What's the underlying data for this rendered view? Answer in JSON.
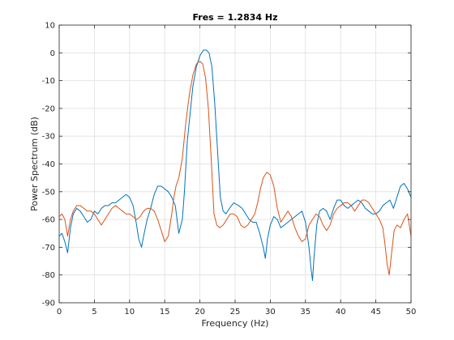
{
  "chart_data": {
    "type": "line",
    "title": "Fres = 1.2834 Hz",
    "xlabel": "Frequency (Hz)",
    "ylabel": "Power Spectrum (dB)",
    "xlim": [
      0,
      50
    ],
    "ylim": [
      -90,
      10
    ],
    "xticks": [
      0,
      5,
      10,
      15,
      20,
      25,
      30,
      35,
      40,
      45,
      50
    ],
    "yticks": [
      -90,
      -80,
      -70,
      -60,
      -50,
      -40,
      -30,
      -20,
      -10,
      0,
      10
    ],
    "grid": true,
    "legend": "none",
    "series": [
      {
        "color": "#0072BD",
        "x": [
          0,
          0.4,
          0.8,
          1.2,
          1.6,
          2.0,
          2.5,
          3.0,
          3.5,
          4.0,
          4.5,
          5.0,
          5.5,
          6.0,
          6.5,
          7.0,
          7.5,
          8.0,
          8.5,
          9.0,
          9.5,
          10.0,
          10.5,
          11.0,
          11.3,
          11.7,
          12.0,
          12.5,
          13.0,
          13.5,
          14.0,
          14.5,
          15.0,
          15.5,
          16.0,
          16.5,
          17.0,
          17.5,
          17.8,
          18.2,
          18.6,
          19.0,
          19.5,
          20.0,
          20.5,
          20.9,
          21.3,
          21.7,
          22.1,
          22.5,
          22.9,
          23.3,
          23.7,
          24.2,
          24.8,
          25.5,
          26.0,
          26.5,
          27.0,
          27.5,
          28.0,
          28.5,
          29.0,
          29.3,
          29.6,
          30.0,
          30.5,
          31.0,
          31.5,
          32.0,
          32.5,
          33.0,
          33.5,
          34.0,
          34.5,
          35.0,
          35.5,
          35.8,
          36.0,
          36.2,
          36.6,
          37.0,
          37.5,
          38.0,
          38.5,
          39.0,
          39.5,
          40.0,
          40.5,
          41.0,
          41.5,
          42.0,
          42.5,
          43.0,
          43.5,
          44.0,
          44.5,
          45.0,
          45.5,
          46.0,
          46.5,
          47.0,
          47.5,
          48.0,
          48.5,
          49.0,
          49.5,
          50.0
        ],
        "y": [
          -66,
          -65,
          -68,
          -72,
          -63,
          -58,
          -56,
          -57,
          -59,
          -61,
          -60,
          -57,
          -58,
          -56,
          -55,
          -55,
          -54,
          -54,
          -53,
          -52,
          -51,
          -52,
          -55,
          -62,
          -67,
          -70,
          -66,
          -60,
          -56,
          -51,
          -48,
          -48,
          -49,
          -50,
          -52,
          -55,
          -65,
          -60,
          -50,
          -32,
          -22,
          -12,
          -5,
          -1,
          1,
          1,
          0,
          -5,
          -18,
          -35,
          -52,
          -57,
          -58,
          -56,
          -54,
          -55,
          -56,
          -58,
          -60,
          -61,
          -61,
          -65,
          -70,
          -74,
          -67,
          -62,
          -59,
          -60,
          -63,
          -62,
          -61,
          -60,
          -59,
          -58,
          -57,
          -61,
          -70,
          -78,
          -82,
          -74,
          -62,
          -57,
          -56,
          -57,
          -60,
          -56,
          -53,
          -53,
          -55,
          -56,
          -55,
          -54,
          -53,
          -54,
          -56,
          -57,
          -58,
          -58,
          -57,
          -55,
          -54,
          -53,
          -56,
          -52,
          -48,
          -47,
          -49,
          -52
        ]
      },
      {
        "color": "#D95319",
        "x": [
          0,
          0.4,
          0.8,
          1.2,
          1.6,
          2.0,
          2.5,
          3.0,
          3.5,
          4.0,
          4.5,
          5.0,
          5.5,
          6.0,
          6.5,
          7.0,
          7.5,
          8.0,
          8.5,
          9.0,
          9.5,
          10.0,
          10.5,
          11.0,
          11.5,
          12.0,
          12.5,
          13.0,
          13.5,
          14.0,
          14.5,
          15.0,
          15.5,
          16.0,
          16.3,
          16.6,
          17.0,
          17.5,
          18.0,
          18.5,
          19.0,
          19.5,
          20.0,
          20.4,
          20.8,
          21.2,
          21.6,
          22.0,
          22.4,
          22.8,
          23.3,
          23.8,
          24.3,
          24.8,
          25.3,
          25.8,
          26.3,
          26.8,
          27.3,
          27.8,
          28.2,
          28.6,
          29.0,
          29.5,
          30.0,
          30.5,
          31.0,
          31.5,
          32.0,
          32.5,
          33.0,
          33.5,
          34.0,
          34.5,
          35.0,
          35.5,
          36.0,
          36.5,
          37.0,
          37.5,
          38.0,
          38.5,
          39.0,
          39.5,
          40.0,
          40.5,
          41.0,
          41.5,
          42.0,
          42.5,
          43.0,
          43.5,
          44.0,
          44.5,
          45.0,
          45.5,
          46.0,
          46.3,
          46.6,
          46.9,
          47.2,
          47.6,
          48.0,
          48.5,
          49.0,
          49.5,
          50.0
        ],
        "y": [
          -59,
          -58,
          -60,
          -66,
          -60,
          -57,
          -55,
          -55,
          -56,
          -57,
          -57,
          -58,
          -60,
          -62,
          -60,
          -58,
          -56,
          -55,
          -56,
          -57,
          -58,
          -58,
          -59,
          -60,
          -59,
          -57,
          -56,
          -56,
          -57,
          -60,
          -64,
          -68,
          -66,
          -58,
          -52,
          -48,
          -45,
          -38,
          -25,
          -15,
          -8,
          -4,
          -3,
          -4,
          -9,
          -20,
          -38,
          -58,
          -62,
          -63,
          -62,
          -60,
          -58,
          -58,
          -59,
          -62,
          -63,
          -62,
          -60,
          -58,
          -54,
          -49,
          -45,
          -43,
          -44,
          -48,
          -56,
          -61,
          -59,
          -57,
          -59,
          -63,
          -66,
          -68,
          -67,
          -62,
          -60,
          -58,
          -59,
          -62,
          -64,
          -62,
          -58,
          -56,
          -55,
          -54,
          -54,
          -55,
          -57,
          -55,
          -53,
          -53,
          -54,
          -56,
          -58,
          -60,
          -63,
          -69,
          -76,
          -80,
          -73,
          -64,
          -62,
          -63,
          -60,
          -58,
          -66
        ]
      }
    ]
  }
}
